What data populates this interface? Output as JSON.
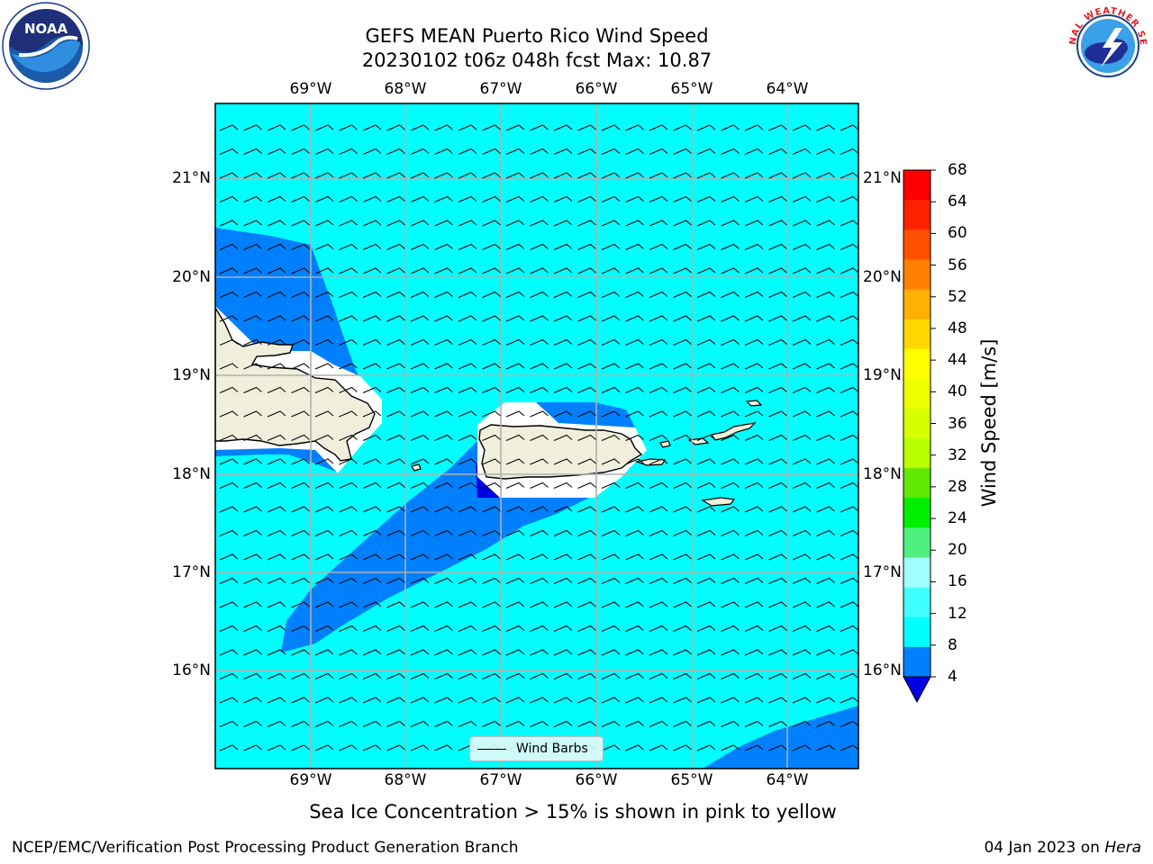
{
  "title": {
    "line1": "GEFS MEAN Puerto Rico Wind Speed",
    "line2": "20230102 t06z 048h fcst   Max: 10.87"
  },
  "map": {
    "longitude_labels": [
      "69°W",
      "68°W",
      "67°W",
      "66°W",
      "65°W",
      "64°W"
    ],
    "latitude_labels": [
      "21°N",
      "20°N",
      "19°N",
      "18°N",
      "17°N",
      "16°N"
    ],
    "ocean_color": "#00ffff",
    "low_wind_color": "#0080ff",
    "lowest_wind_color": "#0000e0",
    "land_color": "#efefdc"
  },
  "legend": {
    "wind_barbs_label": "Wind Barbs"
  },
  "colorbar": {
    "label": "Wind Speed [m/s]",
    "ticks": [
      "68",
      "64",
      "60",
      "56",
      "52",
      "48",
      "44",
      "40",
      "36",
      "32",
      "28",
      "24",
      "20",
      "16",
      "12",
      "8",
      "4"
    ],
    "colors": [
      "#ff0000",
      "#ff2000",
      "#ff5000",
      "#ff8000",
      "#ffb000",
      "#ffd800",
      "#ffff00",
      "#eeff00",
      "#d8ff00",
      "#b8ff00",
      "#60e800",
      "#00ee00",
      "#50f080",
      "#a0ffff",
      "#40ffff",
      "#00ffff",
      "#0080ff"
    ],
    "under_color": "#0000e0"
  },
  "logos": {
    "noaa_text": "NOAA",
    "nws_text": "NATIONAL WEATHER SERVICE"
  },
  "footer": {
    "note": "Sea Ice Concentration > 15% is shown in pink to yellow",
    "left": "NCEP/EMC/Verification Post Processing Product Generation Branch",
    "right_prefix": "04 Jan 2023 on ",
    "right_machine": "Hera"
  }
}
